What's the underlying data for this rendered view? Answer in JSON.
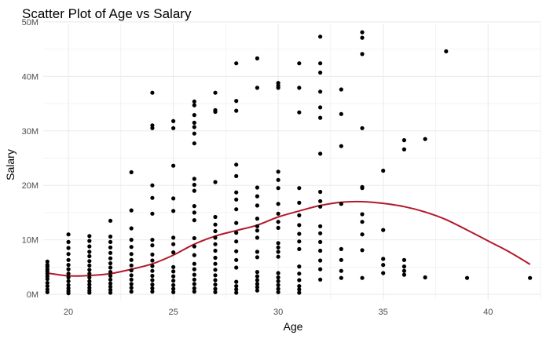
{
  "chart_data": {
    "type": "scatter",
    "title": "Scatter Plot of Age vs Salary",
    "xlabel": "Age",
    "ylabel": "Salary",
    "xlim": [
      18.8,
      42.5
    ],
    "ylim": [
      -1000000,
      49700000
    ],
    "x_ticks": [
      20,
      25,
      30,
      35,
      40
    ],
    "x_tick_labels": [
      "20",
      "25",
      "30",
      "35",
      "40"
    ],
    "y_ticks": [
      0,
      10000000,
      20000000,
      30000000,
      40000000,
      50000000
    ],
    "y_tick_labels": [
      "0M",
      "10M",
      "20M",
      "30M",
      "40M",
      "50M"
    ],
    "grid": true,
    "colors": {
      "points": "#000000",
      "trend": "#b2182b",
      "grid": "#ebebeb"
    },
    "series": [
      {
        "type": "scatter",
        "points": [
          [
            19,
            6000000
          ],
          [
            19,
            5400000
          ],
          [
            19,
            5100000
          ],
          [
            19,
            4600000
          ],
          [
            19,
            4200000
          ],
          [
            19,
            3800000
          ],
          [
            19,
            3300000
          ],
          [
            19,
            2800000
          ],
          [
            19,
            2100000
          ],
          [
            19,
            1500000
          ],
          [
            19,
            900000
          ],
          [
            19,
            400000
          ],
          [
            20,
            11000000
          ],
          [
            20,
            9600000
          ],
          [
            20,
            8500000
          ],
          [
            20,
            7400000
          ],
          [
            20,
            6300000
          ],
          [
            20,
            5400000
          ],
          [
            20,
            4600000
          ],
          [
            20,
            3800000
          ],
          [
            20,
            3100000
          ],
          [
            20,
            2400000
          ],
          [
            20,
            1700000
          ],
          [
            20,
            1100000
          ],
          [
            20,
            600000
          ],
          [
            20,
            200000
          ],
          [
            21,
            10700000
          ],
          [
            21,
            9800000
          ],
          [
            21,
            8800000
          ],
          [
            21,
            7800000
          ],
          [
            21,
            7000000
          ],
          [
            21,
            6100000
          ],
          [
            21,
            5300000
          ],
          [
            21,
            4500000
          ],
          [
            21,
            3800000
          ],
          [
            21,
            3100000
          ],
          [
            21,
            2400000
          ],
          [
            21,
            1800000
          ],
          [
            21,
            1200000
          ],
          [
            21,
            700000
          ],
          [
            21,
            300000
          ],
          [
            22,
            13500000
          ],
          [
            22,
            10600000
          ],
          [
            22,
            9600000
          ],
          [
            22,
            8600000
          ],
          [
            22,
            7600000
          ],
          [
            22,
            6600000
          ],
          [
            22,
            5700000
          ],
          [
            22,
            4900000
          ],
          [
            22,
            4100000
          ],
          [
            22,
            3400000
          ],
          [
            22,
            2700000
          ],
          [
            22,
            2000000
          ],
          [
            22,
            1400000
          ],
          [
            22,
            800000
          ],
          [
            22,
            300000
          ],
          [
            23,
            22400000
          ],
          [
            23,
            15400000
          ],
          [
            23,
            12100000
          ],
          [
            23,
            10000000
          ],
          [
            23,
            8700000
          ],
          [
            23,
            7400000
          ],
          [
            23,
            6300000
          ],
          [
            23,
            5300000
          ],
          [
            23,
            4400000
          ],
          [
            23,
            3500000
          ],
          [
            23,
            2700000
          ],
          [
            23,
            1900000
          ],
          [
            23,
            1200000
          ],
          [
            23,
            500000
          ],
          [
            24,
            37000000
          ],
          [
            24,
            31000000
          ],
          [
            24,
            30500000
          ],
          [
            24,
            20000000
          ],
          [
            24,
            17700000
          ],
          [
            24,
            14800000
          ],
          [
            24,
            10000000
          ],
          [
            24,
            9000000
          ],
          [
            24,
            7300000
          ],
          [
            24,
            6200000
          ],
          [
            24,
            5200000
          ],
          [
            24,
            4300000
          ],
          [
            24,
            3400000
          ],
          [
            24,
            2600000
          ],
          [
            24,
            1800000
          ],
          [
            24,
            1100000
          ],
          [
            24,
            500000
          ],
          [
            25,
            31800000
          ],
          [
            25,
            30500000
          ],
          [
            25,
            23600000
          ],
          [
            25,
            17600000
          ],
          [
            25,
            15300000
          ],
          [
            25,
            10400000
          ],
          [
            25,
            9200000
          ],
          [
            25,
            7700000
          ],
          [
            25,
            5000000
          ],
          [
            25,
            4200000
          ],
          [
            25,
            3300000
          ],
          [
            25,
            2500000
          ],
          [
            25,
            1700000
          ],
          [
            25,
            1000000
          ],
          [
            25,
            400000
          ],
          [
            26,
            35400000
          ],
          [
            26,
            34700000
          ],
          [
            26,
            32900000
          ],
          [
            26,
            31500000
          ],
          [
            26,
            30700000
          ],
          [
            26,
            29500000
          ],
          [
            26,
            27700000
          ],
          [
            26,
            21200000
          ],
          [
            26,
            20100000
          ],
          [
            26,
            19000000
          ],
          [
            26,
            16200000
          ],
          [
            26,
            15000000
          ],
          [
            26,
            13600000
          ],
          [
            26,
            10300000
          ],
          [
            26,
            8800000
          ],
          [
            26,
            7200000
          ],
          [
            26,
            5600000
          ],
          [
            26,
            4600000
          ],
          [
            26,
            3600000
          ],
          [
            26,
            2700000
          ],
          [
            26,
            1900000
          ],
          [
            26,
            1100000
          ],
          [
            26,
            500000
          ],
          [
            27,
            37000000
          ],
          [
            27,
            33800000
          ],
          [
            27,
            33500000
          ],
          [
            27,
            20600000
          ],
          [
            27,
            14200000
          ],
          [
            27,
            12800000
          ],
          [
            27,
            11600000
          ],
          [
            27,
            10400000
          ],
          [
            27,
            9200000
          ],
          [
            27,
            8000000
          ],
          [
            27,
            6700000
          ],
          [
            27,
            5600000
          ],
          [
            27,
            4500000
          ],
          [
            27,
            3500000
          ],
          [
            27,
            2600000
          ],
          [
            27,
            1800000
          ],
          [
            27,
            1000000
          ],
          [
            27,
            400000
          ],
          [
            28,
            42400000
          ],
          [
            28,
            35500000
          ],
          [
            28,
            33700000
          ],
          [
            28,
            23800000
          ],
          [
            28,
            21700000
          ],
          [
            28,
            18700000
          ],
          [
            28,
            17400000
          ],
          [
            28,
            15600000
          ],
          [
            28,
            13100000
          ],
          [
            28,
            11300000
          ],
          [
            28,
            9700000
          ],
          [
            28,
            7900000
          ],
          [
            28,
            6300000
          ],
          [
            28,
            4900000
          ],
          [
            28,
            2300000
          ],
          [
            28,
            1500000
          ],
          [
            28,
            900000
          ],
          [
            28,
            300000
          ],
          [
            29,
            43300000
          ],
          [
            29,
            37900000
          ],
          [
            29,
            19600000
          ],
          [
            29,
            18000000
          ],
          [
            29,
            16300000
          ],
          [
            29,
            13900000
          ],
          [
            29,
            12500000
          ],
          [
            29,
            11700000
          ],
          [
            29,
            10400000
          ],
          [
            29,
            7800000
          ],
          [
            29,
            6800000
          ],
          [
            29,
            4100000
          ],
          [
            29,
            3300000
          ],
          [
            29,
            2600000
          ],
          [
            29,
            1900000
          ],
          [
            29,
            1300000
          ],
          [
            29,
            700000
          ],
          [
            30,
            38800000
          ],
          [
            30,
            38300000
          ],
          [
            30,
            37900000
          ],
          [
            30,
            22500000
          ],
          [
            30,
            21000000
          ],
          [
            30,
            19500000
          ],
          [
            30,
            16600000
          ],
          [
            30,
            14800000
          ],
          [
            30,
            13300000
          ],
          [
            30,
            12200000
          ],
          [
            30,
            9400000
          ],
          [
            30,
            8600000
          ],
          [
            30,
            7800000
          ],
          [
            30,
            6900000
          ],
          [
            30,
            3900000
          ],
          [
            30,
            3100000
          ],
          [
            30,
            2400000
          ],
          [
            30,
            1700000
          ],
          [
            30,
            1000000
          ],
          [
            30,
            400000
          ],
          [
            31,
            42400000
          ],
          [
            31,
            37900000
          ],
          [
            31,
            33400000
          ],
          [
            31,
            19500000
          ],
          [
            31,
            16800000
          ],
          [
            31,
            14500000
          ],
          [
            31,
            12700000
          ],
          [
            31,
            11100000
          ],
          [
            31,
            9700000
          ],
          [
            31,
            8300000
          ],
          [
            31,
            5100000
          ],
          [
            31,
            3800000
          ],
          [
            31,
            2600000
          ],
          [
            31,
            1500000
          ],
          [
            31,
            900000
          ],
          [
            31,
            300000
          ],
          [
            32,
            47300000
          ],
          [
            32,
            42400000
          ],
          [
            32,
            40700000
          ],
          [
            32,
            37200000
          ],
          [
            32,
            34300000
          ],
          [
            32,
            32400000
          ],
          [
            32,
            25800000
          ],
          [
            32,
            18800000
          ],
          [
            32,
            17100000
          ],
          [
            32,
            16100000
          ],
          [
            32,
            12500000
          ],
          [
            32,
            11200000
          ],
          [
            32,
            9600000
          ],
          [
            32,
            8000000
          ],
          [
            32,
            6200000
          ],
          [
            32,
            4600000
          ],
          [
            32,
            2700000
          ],
          [
            33,
            37600000
          ],
          [
            33,
            33100000
          ],
          [
            33,
            27200000
          ],
          [
            33,
            16600000
          ],
          [
            33,
            8300000
          ],
          [
            33,
            6300000
          ],
          [
            33,
            4300000
          ],
          [
            33,
            3000000
          ],
          [
            34,
            48100000
          ],
          [
            34,
            47100000
          ],
          [
            34,
            44100000
          ],
          [
            34,
            30500000
          ],
          [
            34,
            19700000
          ],
          [
            34,
            19500000
          ],
          [
            34,
            14700000
          ],
          [
            34,
            13300000
          ],
          [
            34,
            11000000
          ],
          [
            34,
            8100000
          ],
          [
            34,
            3000000
          ],
          [
            35,
            22700000
          ],
          [
            35,
            11800000
          ],
          [
            35,
            6500000
          ],
          [
            35,
            5400000
          ],
          [
            35,
            3900000
          ],
          [
            36,
            28300000
          ],
          [
            36,
            26600000
          ],
          [
            36,
            6300000
          ],
          [
            36,
            5100000
          ],
          [
            36,
            4300000
          ],
          [
            36,
            3600000
          ],
          [
            37,
            28500000
          ],
          [
            37,
            3100000
          ],
          [
            38,
            44600000
          ],
          [
            39,
            3000000
          ],
          [
            42,
            3000000
          ]
        ]
      },
      {
        "type": "line",
        "points": [
          [
            19,
            3900000
          ],
          [
            20,
            3400000
          ],
          [
            21,
            3450000
          ],
          [
            22,
            3800000
          ],
          [
            23,
            4600000
          ],
          [
            24,
            5600000
          ],
          [
            25,
            7200000
          ],
          [
            26,
            9200000
          ],
          [
            27,
            10700000
          ],
          [
            28,
            11700000
          ],
          [
            29,
            12700000
          ],
          [
            30,
            14200000
          ],
          [
            31,
            15300000
          ],
          [
            32,
            16300000
          ],
          [
            33,
            16900000
          ],
          [
            34,
            17000000
          ],
          [
            35,
            16700000
          ],
          [
            36,
            16100000
          ],
          [
            37,
            15100000
          ],
          [
            38,
            13700000
          ],
          [
            39,
            11800000
          ],
          [
            40,
            9800000
          ],
          [
            41,
            7800000
          ],
          [
            42,
            5500000
          ]
        ]
      }
    ]
  }
}
